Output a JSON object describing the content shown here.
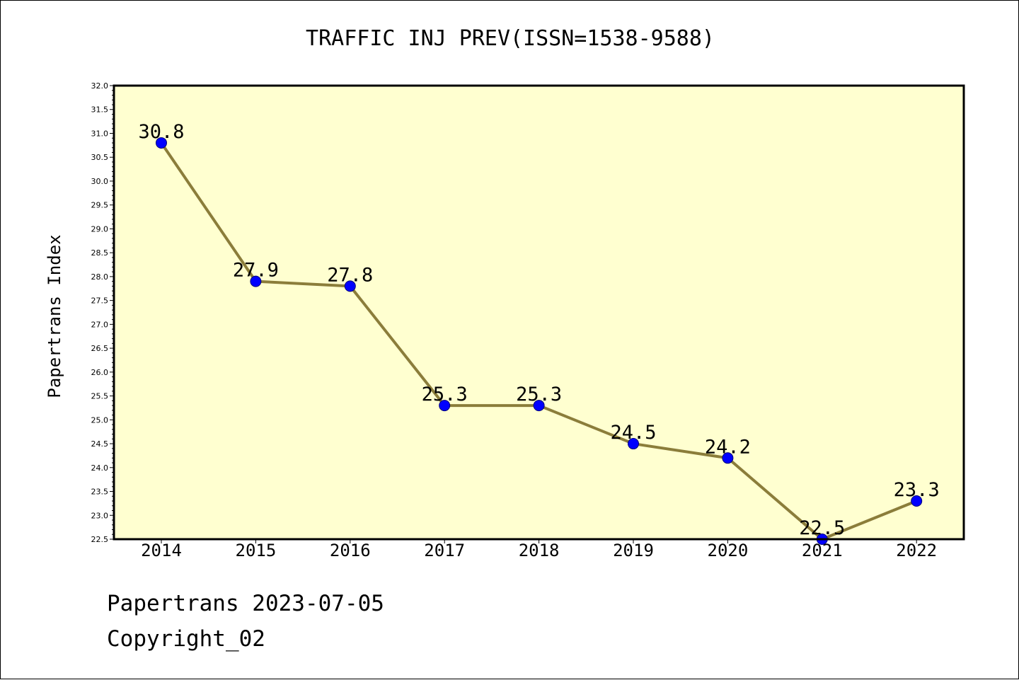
{
  "chart_data": {
    "type": "line",
    "title": "TRAFFIC INJ PREV(ISSN=1538-9588)",
    "xlabel": "",
    "ylabel": "Papertrans Index",
    "categories": [
      "2014",
      "2015",
      "2016",
      "2017",
      "2018",
      "2019",
      "2020",
      "2021",
      "2022"
    ],
    "series": [
      {
        "values": [
          30.8,
          27.9,
          27.8,
          25.3,
          25.3,
          24.5,
          24.2,
          22.5,
          23.3
        ],
        "labels": [
          "30.8",
          "27.9",
          "27.8",
          "25.3",
          "25.3",
          "24.5",
          "24.2",
          "22.5",
          "23.3"
        ]
      }
    ],
    "ylim": [
      22.5,
      32.0
    ],
    "yticks": [
      "22.5",
      "23.0",
      "23.5",
      "24.0",
      "24.5",
      "25.0",
      "25.5",
      "26.0",
      "26.5",
      "27.0",
      "27.5",
      "28.0",
      "28.5",
      "29.0",
      "29.5",
      "30.0",
      "30.5",
      "31.0",
      "31.5",
      "32.0"
    ],
    "grid": false,
    "legend": "none",
    "colors": {
      "plot_background": "#ffffd0",
      "line": "#8b7d3a",
      "marker": "#0000ff"
    }
  },
  "footer": {
    "line1": "Papertrans 2023-07-05",
    "line2": "Copyright_02"
  }
}
